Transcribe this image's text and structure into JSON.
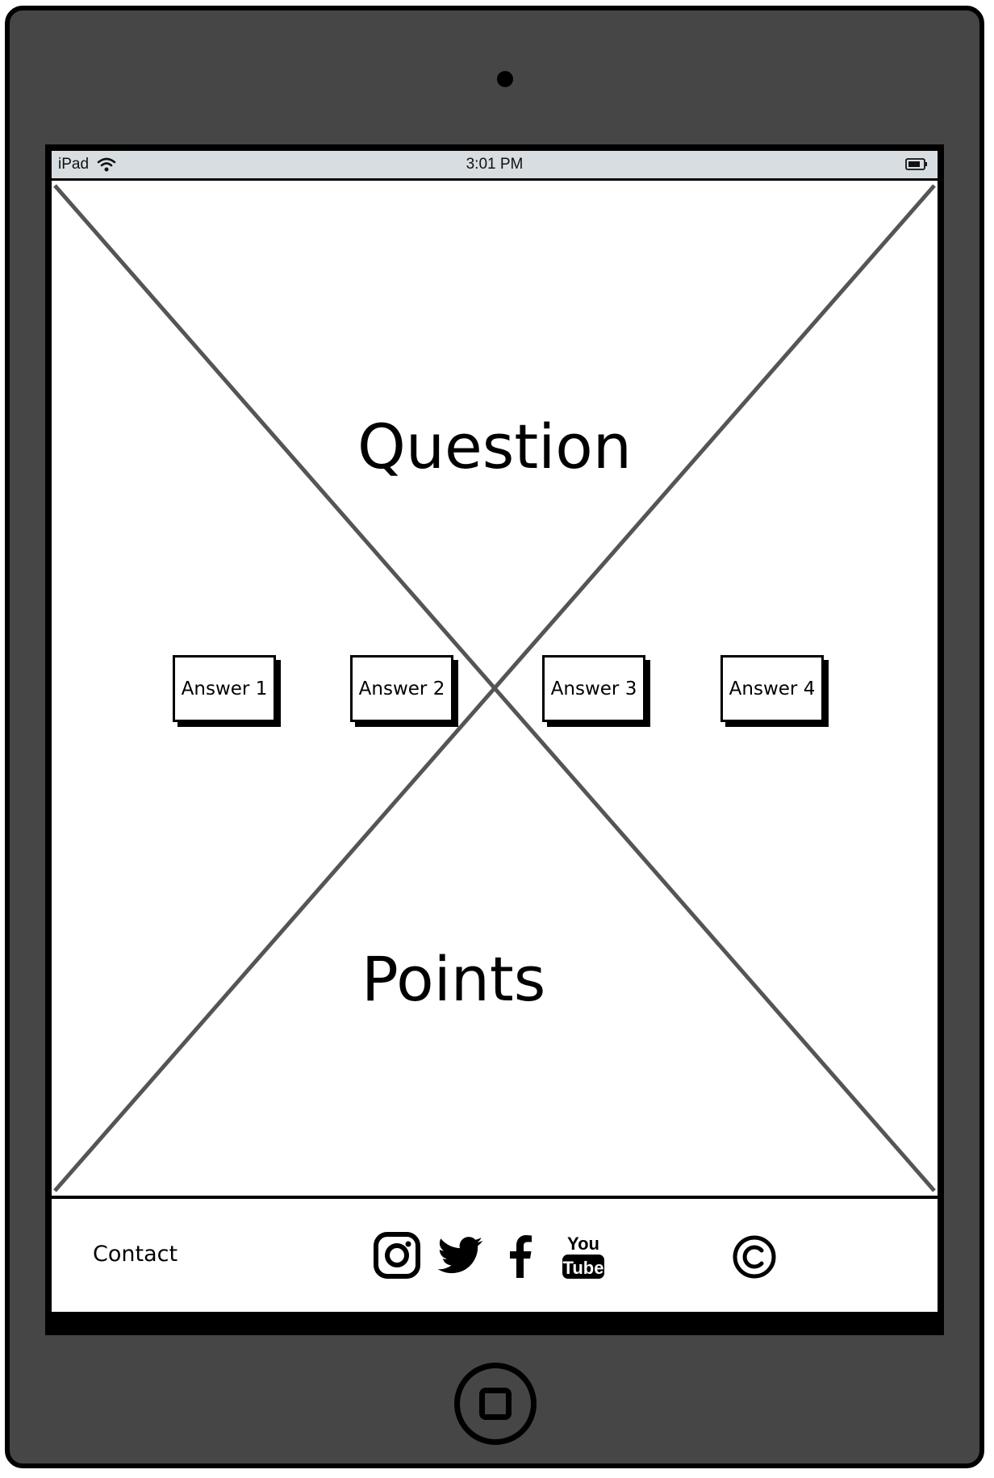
{
  "status_bar": {
    "device": "iPad",
    "time": "3:01 PM",
    "wifi_icon": "wifi-icon",
    "battery_icon": "battery-icon"
  },
  "main": {
    "question": "Question",
    "points": "Points",
    "answers": [
      {
        "label": "Answer 1"
      },
      {
        "label": "Answer 2"
      },
      {
        "label": "Answer 3"
      },
      {
        "label": "Answer 4"
      }
    ]
  },
  "footer": {
    "contact": "Contact",
    "social_icons": [
      "instagram-icon",
      "twitter-icon",
      "facebook-icon",
      "youtube-icon"
    ],
    "copyright_icon": "copyright-icon",
    "youtube_text_top": "You",
    "youtube_text_bottom": "Tube"
  },
  "colors": {
    "device_body": "#464646",
    "status_bar": "#d8dde1",
    "placeholder_lines": "#555555"
  }
}
